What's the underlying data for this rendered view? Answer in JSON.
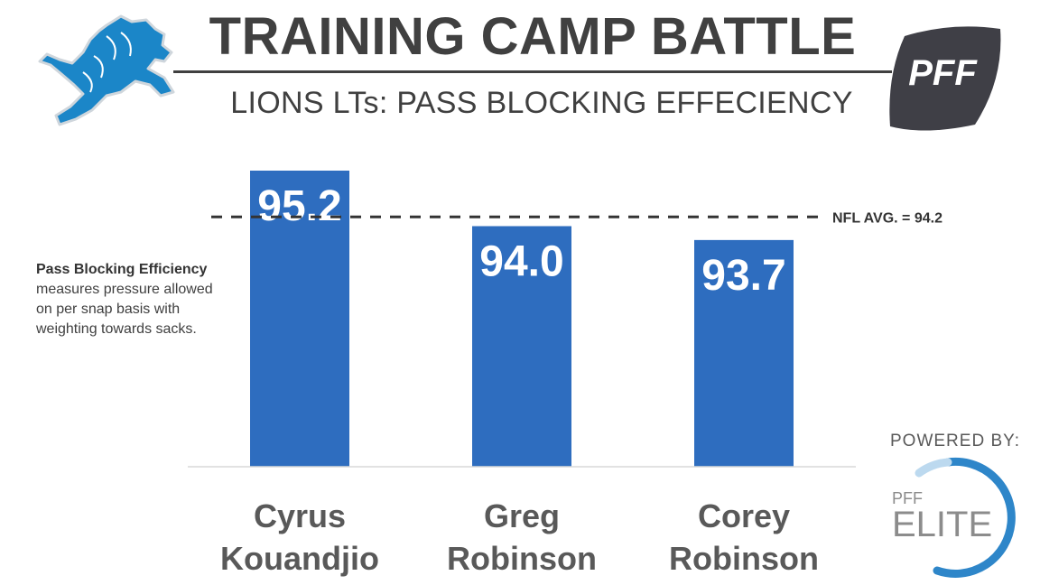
{
  "header": {
    "title": "TRAINING CAMP BATTLE",
    "subtitle": "LIONS LTs: PASS BLOCKING EFFECIENCY",
    "left_logo": "detroit-lions-logo",
    "right_logo": "pff-logo",
    "right_logo_text": "PFF"
  },
  "note": {
    "bold": "Pass Blocking Efficiency",
    "text": "measures pressure allowed on per snap basis with weighting towards sacks."
  },
  "footer": {
    "powered_by": "POWERED BY:",
    "logo_small": "PFF",
    "logo_large": "ELITE"
  },
  "colors": {
    "bar": "#2E6DBF",
    "text_dark": "#404040",
    "lion_blue": "#1B86C8",
    "pff_gray": "#3f3f46",
    "elite_ring": "#2E86C9"
  },
  "chart_data": {
    "type": "bar",
    "categories": [
      "Cyrus Kouandjio",
      "Greg Robinson",
      "Corey Robinson"
    ],
    "category_lines": [
      [
        "Cyrus",
        "Kouandjio"
      ],
      [
        "Greg",
        "Robinson"
      ],
      [
        "Corey",
        "Robinson"
      ]
    ],
    "values": [
      95.2,
      94.0,
      93.7
    ],
    "value_labels": [
      "95.2",
      "94.0",
      "93.7"
    ],
    "reference_line": {
      "value": 94.2,
      "label": "NFL AVG. = 94.2",
      "style": "dashed"
    },
    "ylim": [
      88.8,
      95.4
    ],
    "grid": false,
    "title": "",
    "xlabel": "",
    "ylabel": ""
  }
}
